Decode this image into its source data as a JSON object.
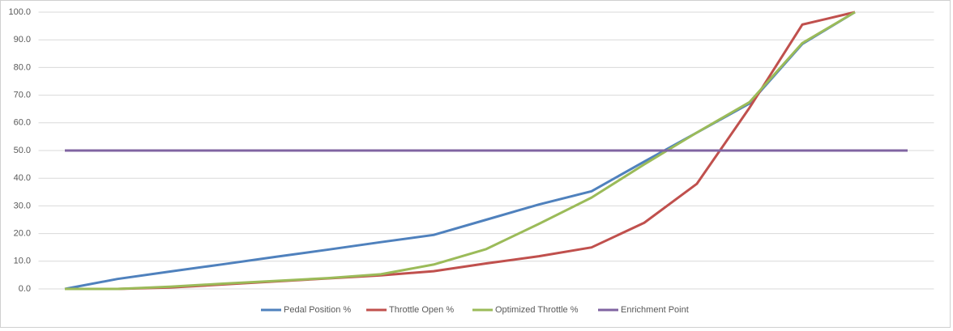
{
  "chart_data": {
    "type": "line",
    "categories": [
      null,
      null,
      null,
      null,
      null,
      null,
      null,
      null,
      null,
      null,
      null,
      null,
      null,
      null,
      null,
      null,
      null
    ],
    "series": [
      {
        "name": "Pedal Position %",
        "color": "#4f81bd",
        "values": [
          0,
          3.6,
          6.3,
          8.9,
          11.6,
          14.2,
          16.9,
          19.5,
          25,
          30.5,
          35.3,
          46,
          56.5,
          67,
          88.5,
          100,
          null
        ]
      },
      {
        "name": "Throttle Open %",
        "color": "#c0504d",
        "values": [
          0,
          0,
          0.5,
          1.6,
          2.7,
          3.8,
          4.9,
          6.4,
          9.2,
          11.8,
          15,
          23.9,
          38,
          65.5,
          95.5,
          100,
          null
        ]
      },
      {
        "name": "Optimized Throttle %",
        "color": "#9bbb59",
        "values": [
          0,
          0,
          0.8,
          1.9,
          2.9,
          3.9,
          5.3,
          8.8,
          14.4,
          23.5,
          33,
          45,
          56.5,
          67.5,
          88.8,
          100,
          null
        ]
      },
      {
        "name": "Enrichment Point",
        "color": "#8064a2",
        "values": [
          50,
          50,
          50,
          50,
          50,
          50,
          50,
          50,
          50,
          50,
          50,
          50,
          50,
          50,
          50,
          50,
          50
        ]
      }
    ],
    "ylim": [
      0,
      100
    ],
    "yticks": [
      {
        "value": 0,
        "label": "0.0"
      },
      {
        "value": 10,
        "label": "10.0"
      },
      {
        "value": 20,
        "label": "20.0"
      },
      {
        "value": 30,
        "label": "30.0"
      },
      {
        "value": 40,
        "label": "40.0"
      },
      {
        "value": 50,
        "label": "50.0"
      },
      {
        "value": 60,
        "label": "60.0"
      },
      {
        "value": 70,
        "label": "70.0"
      },
      {
        "value": 80,
        "label": "80.0"
      },
      {
        "value": 90,
        "label": "90.0"
      },
      {
        "value": 100,
        "label": "100.0"
      }
    ],
    "grid": true,
    "legend": "bottom"
  }
}
